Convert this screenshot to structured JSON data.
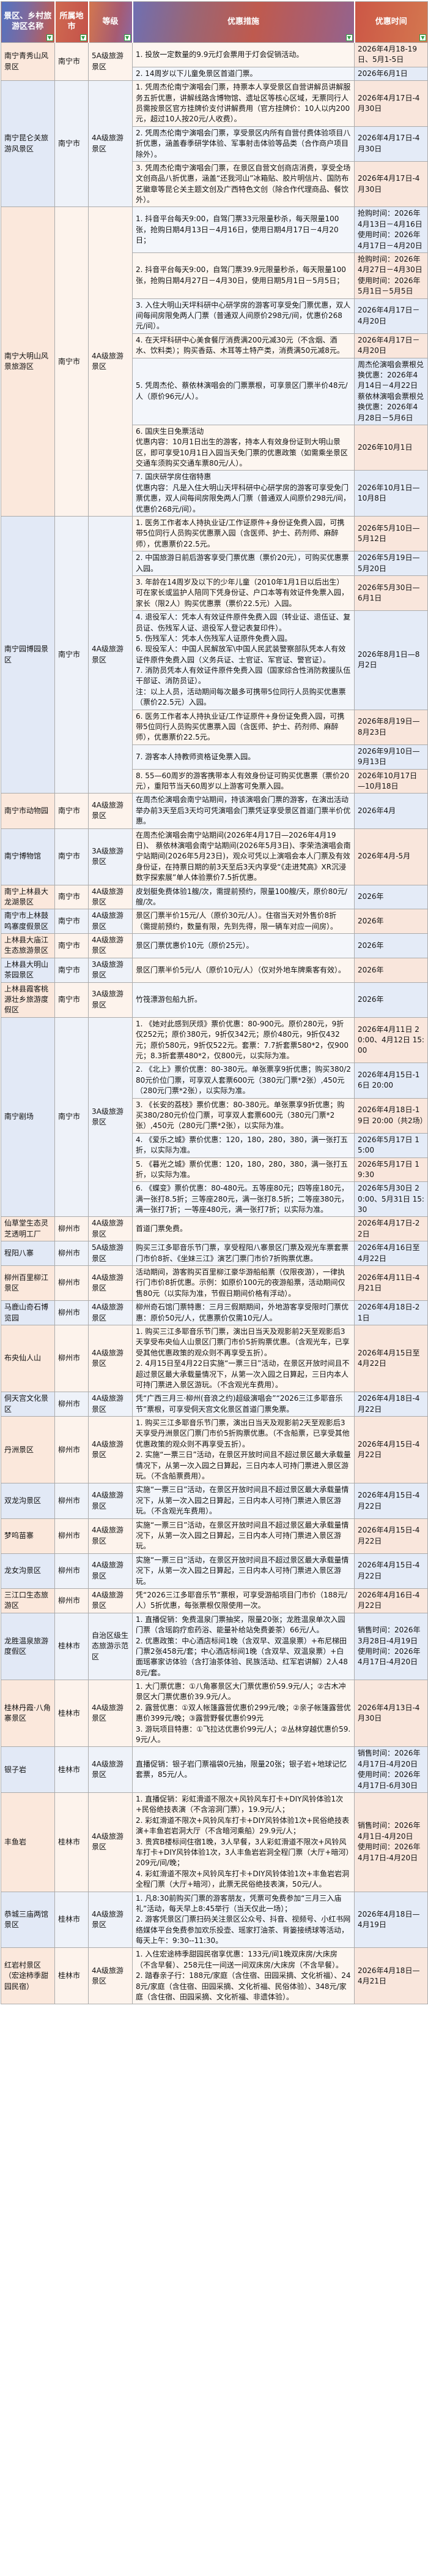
{
  "colors": {
    "header_blue": "#5273c2",
    "header_red": "#c65a4b",
    "header_orange": "#d4774f",
    "filter_icon_green": "#2f9e44",
    "tint_pink": "#fbe8dc",
    "tint_blue": "#e2e9f6",
    "grid_line": "#ababab"
  },
  "table": {
    "headers": [
      "景区、乡村旅游区名称",
      "所属地市",
      "等级",
      "优惠措施",
      "优惠时间"
    ],
    "filter_icon": "filter-dropdown",
    "rows": [
      {
        "name": "南宁青秀山风景区",
        "city": "南宁市",
        "grade": "5A级旅游景区",
        "offers": [
          {
            "measure": "1. 投放一定数量的9.9元灯会票用于灯会促销活动。",
            "time": "2026年4月18-19日、5月1-5日"
          },
          {
            "measure": "2. 14周岁以下儿童免景区首道门票。",
            "time": "2026年6月1日"
          }
        ]
      },
      {
        "name": "南宁昆仑关旅游风景区",
        "city": "南宁市",
        "grade": "4A级旅游景区",
        "offers": [
          {
            "measure": "1. 凭周杰伦南宁演唱会门票，持票本人享受景区自营讲解员讲解服务五折优惠，讲解线路含博物馆、遗址区等核心区域，无票同行人员需按景区官方挂牌价支付讲解费用（官方挂牌价：10人以内200元，超过10人按20元/人收费）。",
            "time": "2026年4月17日-4月30日"
          },
          {
            "measure": "2. 凭周杰伦南宁演唱会门票，享受景区内所有自营付费体验项目八折优惠，涵盖春季研学体验、军事射击体验等品类（合作商户项目除外）。",
            "time": "2026年4月17日-4月30日"
          },
          {
            "measure": "3. 凭周杰伦南宁演唱会门票，在景区自营文创商店消费，享受全场文创商品八折优惠，涵盖“还我河山”冰箱贴、胶片明信片、国防布艺徽章等昆仑关主题文创及广西特色文创（除合作代理商品、餐饮外）。",
            "time": "2026年4月17日-4月30日"
          }
        ]
      },
      {
        "name": "南宁大明山风景旅游区",
        "city": "南宁市",
        "grade": "4A级旅游景区",
        "offers": [
          {
            "measure": "1. 抖音平台每天9:00，自驾门票33元限量秒杀，每天限量100张，抢购日期4月13日－4月16日，使用日期4月17日－4月20日；",
            "time": "抢购时间：2026年4月13日－4月16日\n使用时间：2026年4月17日－4月20日"
          },
          {
            "measure": "2. 抖音平台每天9:00，自驾门票39.9元限量秒杀，每天限量100张，抢购日期4月27日－4月30日，使用日期5月1日－5月5日；",
            "time": "抢购时间：2026年4月27日－4月30日\n使用时间：2026年5月1日－5月5日"
          },
          {
            "measure": "3. 入住大明山天坪科研中心研学房的游客可享受免门票优惠，双人间每间房限免两人门票（普通双人间原价298元/间，优惠价268元/间）。",
            "time": "2026年4月17日－4月20日"
          },
          {
            "measure": "4. 在天坪科研中心美食餐厅消费满200元减30元（不含烟、酒水、饮料类）；购买香菇、木耳等土特产类，消费满50元减8元。",
            "time": "2026年4月17日－4月20日"
          },
          {
            "measure": "5. 凭周杰伦、蔡依林演唱会的门票票根，可享景区门票半价48元/人（原价96元/人）。",
            "time": "周杰伦演唱会票根兑换优惠：2026年4月14日－4月22日\n蔡依林演唱会票根兑换优惠：2026年4月28日－5月6日"
          },
          {
            "measure": "6. 国庆生日免票活动\n优惠内容：10月1日出生的游客，持本人有效身份证到大明山景区，即可享受10月1日入园当天免门票的优惠政策（如需乘坐景区交通车须购买交通车票80元/人）。",
            "time": "2026年10月1日"
          },
          {
            "measure": "7. 国庆研学房住宿特惠\n优惠内容：凡是入住大明山天坪科研中心研学房的游客可享受免门票优惠，双人间每间房限免两人门票（普通双人间原价298元/间，优惠价268元/间）。",
            "time": "2026年10月1日—10月8日"
          }
        ]
      },
      {
        "name": "南宁园博园景区",
        "city": "南宁市",
        "grade": "4A级旅游景区",
        "offers": [
          {
            "measure": "1. 医务工作者本人持执业证/工作证原件+身份证免费入园，可携带5位同行人员购买优惠票入园（含医师、护士、药剂师、麻醉师），优惠票价22.5元。",
            "time": "2026年5月10日—5月12日"
          },
          {
            "measure": "2. 中国旅游日前后游客享受门票优惠（票价20元），可购买优惠票入园。",
            "time": "2026年5月19日—5月20日"
          },
          {
            "measure": "3. 年龄在14周岁及以下的少年儿童（2010年1月1日以后出生）可在家长或监护人陪同下凭身份证、户口本等有效证件免票入园，家长（限2人）购买优惠票（票价22.5元）入园。",
            "time": "2026年5月30日—6月1日"
          },
          {
            "measure": "4. 退役军人：凭本人有效证件原件免费入园（转业证、退伍证、复员证、伤残军人证、退役军人登记表复印件）。\n5. 伤残军人：凭本人伤残军人证原件免费入园。\n6. 现役军人：中国人民解放军\\中国人民武装警察部队凭本人有效证件原件免费入园（义务兵证、士官证、军官证、警官证）。\n7. 消防员凭本人有效证件原件免费入园（国家综合性消防救援队伍干部证、消防员证）。\n注：以上人员，活动期间每次最多可携带5位同行人员购买优惠票（票价22.5元）入园。",
            "time": "2026年8月1日—8月2日"
          },
          {
            "measure": "6. 医务工作者本人持执业证/工作证原件+身份证免费入园，可携带5位同行人员购买优惠票入园（含医师、护士、药剂师、麻醉师），优惠票价22.5元。",
            "time": "2026年8月19日—8月23日"
          },
          {
            "measure": "7. 游客本人持教师资格证免票入园。",
            "time": "2026年9月10日—9月13日"
          },
          {
            "measure": "8. 55—60周岁的游客携带本人有效身份证可购买优惠票（票价20元），重阳节当天60周岁以上游客可免票入园。",
            "time": "2026年10月17日—10月18日"
          }
        ]
      },
      {
        "name": "南宁市动物园",
        "city": "南宁市",
        "grade": "4A级旅游景区",
        "offers": [
          {
            "measure": "在周杰伦演唱会南宁站期间，持该演唱会门票的游客，在演出活动举办前3天至后3天均可凭演唱会门票凭证享受景区首道门票半价优惠。",
            "time": "2026年4月"
          }
        ]
      },
      {
        "name": "南宁博物馆",
        "city": "南宁市",
        "grade": "3A级旅游景区",
        "offers": [
          {
            "measure": "在周杰伦演唱会南宁站期间(2026年4月17日—2026年4月19日)、 蔡依林演唱会南宁站期间(2026年5月3日)、李荣浩演唱会南宁站期间(2026年5月23日)，观众可凭以上演唱会本人门票及有效身份证，在持票日期的前3天至后3天内享受“《走进梵高》XR沉浸数字探索展”单人体验票价7.5折优惠。",
            "time": "2026年4月-5月"
          }
        ]
      },
      {
        "name": "南宁上林县大龙湖景区",
        "city": "南宁市",
        "grade": "4A级旅游景区",
        "offers": [
          {
            "measure": "皮划艇免费体验1艘/次，需提前预约，限量100艘/天，原价80元/艘/次。",
            "time": "2026年"
          }
        ]
      },
      {
        "name": "南宁市上林鼓鸣寨度假景区",
        "city": "南宁市",
        "grade": "4A级旅游景区",
        "offers": [
          {
            "measure": "景区门票半价15元/人（原价30元/人）。住宿当天对外售价8折（需提前预约，数量有限，先到先得，限一辆车对应一间房）。",
            "time": "2026年"
          }
        ]
      },
      {
        "name": "上林县大庙江生态旅游景区",
        "city": "南宁市",
        "grade": "4A级旅游景区",
        "offers": [
          {
            "measure": "景区门票优惠价10元（原价25元）。",
            "time": "2026年"
          }
        ]
      },
      {
        "name": "上林县大明山茶园景区",
        "city": "南宁市",
        "grade": "3A级旅游景区",
        "offers": [
          {
            "measure": "景区门票半价5元/人（原价10元/人）（仅对外地车牌乘客有效）。",
            "time": "2026年"
          }
        ]
      },
      {
        "name": "上林县霞客桃源壮乡旅游度假区",
        "city": "南宁市",
        "grade": "3A级旅游景区",
        "offers": [
          {
            "measure": "竹筏漂游包船九折。",
            "time": "2026年"
          }
        ]
      },
      {
        "name": "南宁剧场",
        "city": "南宁市",
        "grade": "3A级旅游景区",
        "offers": [
          {
            "measure": "1. 《她对此感到厌烦》票价优惠：80-900元。原价280元，9折仅252元；原价380元，9折仅342元；原价480元，9折仅432元；原价580元，9折仅522元。套票：7.7折套票580*2，仅900元；8.3折套票480*2，仅800元，以实际为准。",
            "time": "2026年4月11日 20:00、4月12日 15:00"
          },
          {
            "measure": "2. 《北上》票价优惠：80-380元。单张票享9折优惠；购买380/280元价位门票，可享双人套票600元（380元门票*2张）,450元（280元门票*2张），以实际为准。",
            "time": "2026年4月15日-16日 20:00"
          },
          {
            "measure": "3. 《长安的荔枝》票价优惠：80-380元。单张票享9折优惠；购买380/280元价位门票，可享双人套票600元（380元门票*2张）,450元（280元门票*2张），以实际为准。",
            "time": "2026年4月18日-19日 20:00（共2场）"
          },
          {
            "measure": "4. 《爱乐之城》票价优惠：120，180，280，380，满一张打五折，以实际为准。",
            "time": "2026年5月17日 15:00"
          },
          {
            "measure": "5. 《暮光之城》票价优惠：120，180，280，380，满一张打五折，以实际为准。",
            "time": "2026年5月17日 19:30"
          },
          {
            "measure": "6. 《蝶变》票价优惠：80-480元。五等座80元；四等座180元，满一张打8.5折；三等座280元，满一张打8.5折；二等座380元，满一张打7折；一等座480元，满一张打7折；以实际为准。",
            "time": "2026年5月30日 20:00、5月31日 15:30"
          }
        ]
      },
      {
        "name": "仙草堂生态灵芝透明工厂",
        "city": "柳州市",
        "grade": "4A级旅游景区",
        "offers": [
          {
            "measure": "首道门票免费。",
            "time": "2026年4月17日-22日"
          }
        ]
      },
      {
        "name": "程阳八寨",
        "city": "柳州市",
        "grade": "5A级旅游景区",
        "offers": [
          {
            "measure": "购买三江多耶音乐节门票，享受程阳八寨景区门票及观光车票套票门市价8折、《坐妹三江》演艺门票门市价7折购票优惠。",
            "time": "2026年4月16日至4月22日"
          }
        ]
      },
      {
        "name": "柳州百里柳江景区",
        "city": "柳州市",
        "grade": "4A级旅游景区",
        "offers": [
          {
            "measure": "活动期间，游客购买百里柳江豪华游船船票（仅限夜游），一律执行门市价8折优惠。示例：如原价100元的夜游船票，活动期间仅售80元（以实际为准，节假日期间价格有浮动）。",
            "time": "2026年4月11日-4月21日"
          }
        ]
      },
      {
        "name": "马鹿山奇石博览园",
        "city": "柳州市",
        "grade": "4A级旅游景区",
        "offers": [
          {
            "measure": "柳州奇石馆门票特惠：三月三假期期间，外地游客享受限时门票优惠：原价50元/人，优惠票价仅需10元/人。",
            "time": "2026年4月18日-21日"
          }
        ]
      },
      {
        "name": "布央仙人山",
        "city": "柳州市",
        "grade": "4A级旅游景区",
        "offers": [
          {
            "measure": "1. 购买三江多耶音乐节门票，演出日当天及观影前2天至观影后3天享受布央仙人山景区门票门市价5折购票优惠。（含观光车，已享受其他优惠政策的观众则不再享受五折）。\n2. 4月15日至4月22日实施“一票三日”活动，在景区开放时间且不超过景区最大承载量情况下，从第一次入园之日算起，三日内本人可持门票进入景区游玩。（不含观光车费用）。",
            "time": "2026年4月15日至4月22日"
          }
        ]
      },
      {
        "name": "侗天宫文化景区",
        "city": "柳州市",
        "grade": "4A级旅游景区",
        "offers": [
          {
            "measure": "凭“广西三月三·柳州(音浪之约)超级演唱会”“2026三江多耶音乐节”票根，可享受侗天宫文化景区首道门票免票。",
            "time": "2026年4月18日-4月22日"
          }
        ]
      },
      {
        "name": "丹洲景区",
        "city": "柳州市",
        "grade": "4A级旅游景区",
        "offers": [
          {
            "measure": "1. 购买三江多耶音乐节门票，演出日当天及观影前2天至观影后3天享受丹洲景区门票门市价5折购票优惠。（不含船票，已享受其他优惠政策的观众则不再享受五折）。\n2. 实施“一票三日”活动，在景区开放时间且不超过景区最大承载量情况下，从第一次入园之日算起，三日内本人可持门票进入景区游玩。（不含船票费用）。",
            "time": "2026年4月15日-4月22日"
          }
        ]
      },
      {
        "name": "双龙沟景区",
        "city": "柳州市",
        "grade": "4A级旅游景区",
        "offers": [
          {
            "measure": "实施“一票三日”活动，在景区开放时间且不超过景区最大承载量情况下，从第一次入园之日算起，三日内本人可持门票进入景区游玩。（不含观光车费用）。",
            "time": "2026年4月15日-4月22日"
          }
        ]
      },
      {
        "name": "梦呜苗寨",
        "city": "柳州市",
        "grade": "4A级旅游景区",
        "offers": [
          {
            "measure": "实施“一票三日”活动，在景区开放时间且不超过景区最大承载量情况下，从第一次入园之日算起，三日内本人可持门票进入景区游玩。",
            "time": "2026年4月15日-4月22日"
          }
        ]
      },
      {
        "name": "龙女沟景区",
        "city": "柳州市",
        "grade": "4A级旅游景区",
        "offers": [
          {
            "measure": "实施“一票三日”活动，在景区开放时间且不超过景区最大承载量情况下，从第一次入园之日算起，三日内本人可持门票进入景区游玩。",
            "time": "2026年4月15日-4月22日"
          }
        ]
      },
      {
        "name": "三江口生态旅游区",
        "city": "柳州市",
        "grade": "4A级旅游景区",
        "offers": [
          {
            "measure": "凭“2026三江多耶音乐节”票根，可享受游船项目门市价（188元/人）5折优惠，每张票根仅限使用一次。",
            "time": "2026年4月16日-4月22日"
          }
        ]
      },
      {
        "name": "龙胜温泉旅游度假区",
        "city": "桂林市",
        "grade": "自治区级生态旅游示范区",
        "offers": [
          {
            "measure": "1. 直播促销：免费温泉门票抽奖，限量20张；龙胜温泉单次入园门票（含瑶韵疗愈药浴、能量补给站免费姜茶）66元/人。\n2. 优惠政策：中心酒店标间1晚（含双早、双温泉票）+布尼梯田门票2张458元/套；中心酒店标间1晚（含双早、双温泉票）+白面瑶寨家访体验（含打油茶体验、民族活动、红军岩讲解）2人488元/套。",
            "time": "销售时间：2026年3月28日-4月19日\n使用时间：2026年4月17日-4月20日"
          }
        ]
      },
      {
        "name": "桂林丹霞·八角寨景区",
        "city": "桂林市",
        "grade": "4A级旅游景区",
        "offers": [
          {
            "measure": "1. 大门票优惠：①八角寨景区大门票优惠价59.9元/人；②古木冲景区大门票优惠价39.9元/人。\n2. 露营优惠：①双人帐篷露营优惠价299元/晚；②亲子帐篷露营优惠价399元/晚；③露营野餐优惠价99元\n3. 游玩项目特惠：①飞拉达优惠价99元/人；②丛林穿越优惠价59.9元/人。",
            "time": "2026年4月13日-4月30日"
          }
        ]
      },
      {
        "name": "银子岩",
        "city": "桂林市",
        "grade": "4A级旅游景区",
        "offers": [
          {
            "measure": "直播促销：银子岩门票福袋0元抽，限量20张；银子岩+地球记忆套票，85元/人。",
            "time": "销售时间：2026年4月17日-4月20日\n使用时间：2026年4月17日-6月30日"
          }
        ]
      },
      {
        "name": "丰鱼岩",
        "city": "桂林市",
        "grade": "4A级旅游景区",
        "offers": [
          {
            "measure": "1. 直播促销：彩虹滑道不限次+风铃风车打卡+DIY风铃体验1次+民俗绝技表演（不含溶洞门票），19.9元/人；\n2. 彩虹滑道不限次+风铃风车打卡+DIY风铃体验1次+民俗绝技表演+丰鱼岩岩洞大厅（不含暗河乘船）29.9元/人；\n3. 贵宾B楼标间住宿1晚，3人早餐，3人彩虹滑道不限次+风铃风车打卡+DIY风铃体验1次，3人丰鱼岩岩洞全程门票（大厅+暗河）209元/间/晚；\n4. 彩虹滑道不限次+风铃风车打卡+DIY风铃体验1次+丰鱼岩岩洞全程门票（大厅+暗河），此票无民俗绝技表演，50元/人。",
            "time": "销售时间：2026年4月1日-4月20日\n使用时间：2026年4月17日-4月20日"
          }
        ]
      },
      {
        "name": "恭城三庙两馆景区",
        "city": "桂林市",
        "grade": "4A级旅游景区",
        "offers": [
          {
            "measure": "1. 凡8:30前购买门票的游客朋友，凭票可免费参加“三月三入庙礼”活动，每天早上8:45举行（当天仅此一场）；\n2. 游客凭景区门票扫码关注景区公众号、抖音、视频号、小红书网络媒体平台免费参加欢乐投壶、瑶家打油茶、背篓接绣球等活动，每天上午：9:30--11:30。",
            "time": "2026年4月18日—4月19日"
          }
        ]
      },
      {
        "name": "红岩村景区（宏途柿季甜园民宿）",
        "city": "桂林市",
        "grade": "4A级旅游景区",
        "offers": [
          {
            "measure": "1. 入住宏途柿季甜园民宿享优惠：133元/间1晚双床房/大床房（不含早餐）、258元住一间送一间双床房/大床房（不含早餐）。\n2. 踏春亲子行：188元/家庭（含住宿、田园采摘、文化祈福）、248元/家庭（含住宿、田园采摘、文化祈福、民俗体验）、348元/家庭（含住宿、田园采摘、文化祈福、非遗体验）。",
            "time": "2026年4月18日—4月21日"
          }
        ]
      }
    ]
  }
}
